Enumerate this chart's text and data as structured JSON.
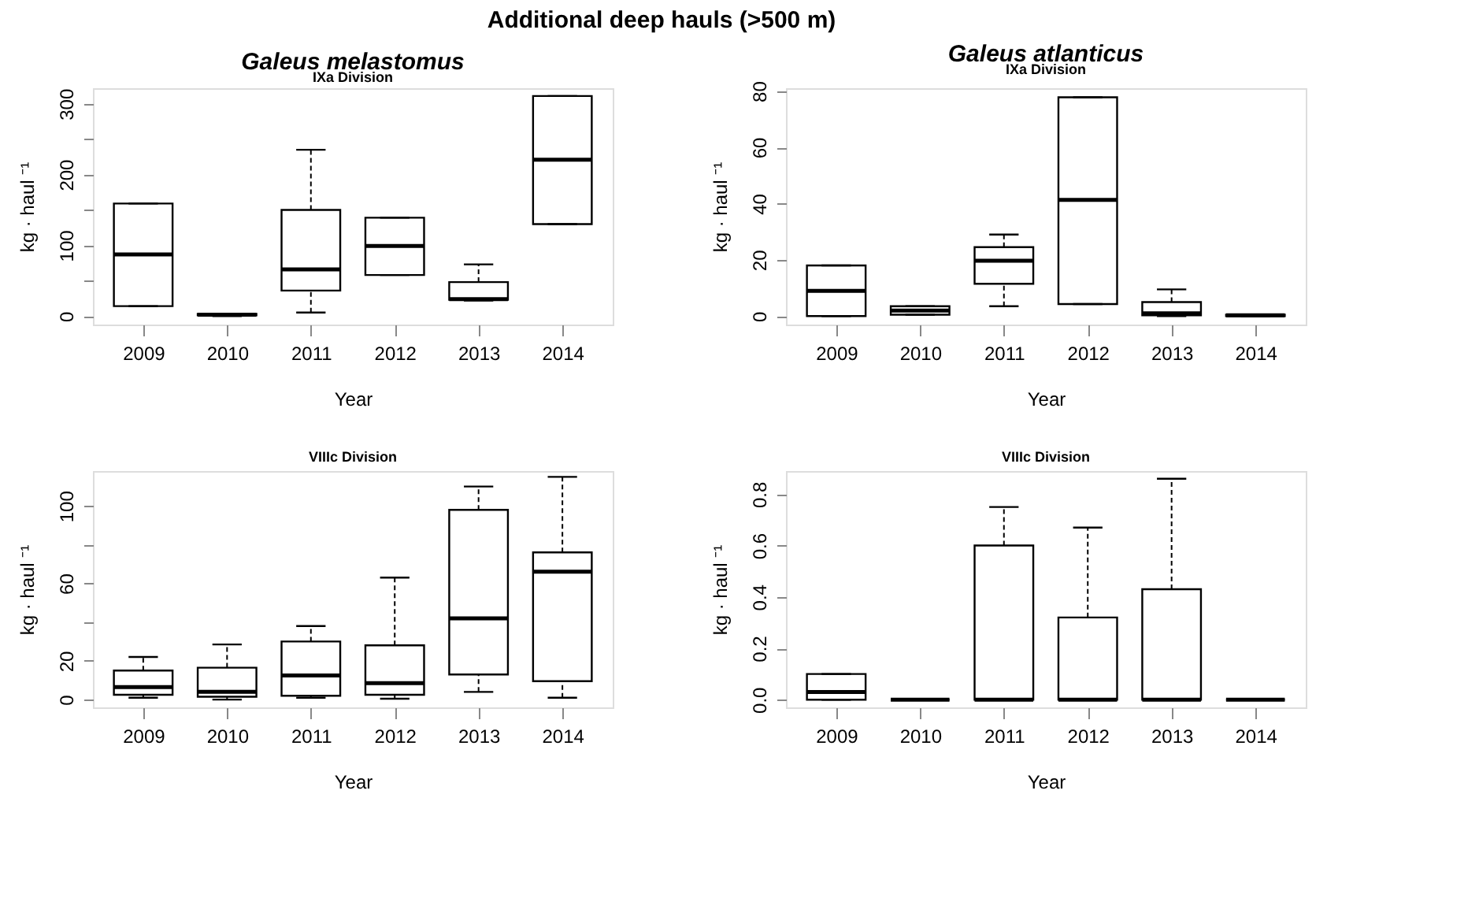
{
  "chart_data": [
    {
      "type": "box",
      "title": "Galeus melastomus",
      "subtitle": "IXa Division",
      "annotations": [
        "Additional deep hauls (>500 m)"
      ],
      "xlabel": "Year",
      "ylabel": "kg · haul ⁻¹",
      "categories": [
        "2009",
        "2010",
        "2011",
        "2012",
        "2013",
        "2014"
      ],
      "ylim": [
        -12,
        322
      ],
      "yticks": [
        0,
        {
          "value": 50,
          "label": null
        },
        100,
        {
          "value": 150,
          "label": null
        },
        200,
        {
          "value": 250,
          "label": null
        },
        300
      ],
      "boxes": [
        {
          "low": 14,
          "q1": 14,
          "median": 87,
          "q3": 159,
          "high": 159
        },
        {
          "low": 0,
          "q1": 1,
          "median": 2,
          "q3": 3,
          "high": 3
        },
        {
          "low": 5,
          "q1": 36,
          "median": 66,
          "q3": 150,
          "high": 235
        },
        {
          "low": 58,
          "q1": 58,
          "median": 99,
          "q3": 139,
          "high": 139
        },
        {
          "low": 22,
          "q1": 23,
          "median": 24,
          "q3": 48,
          "high": 73
        },
        {
          "low": 130,
          "q1": 130,
          "median": 221,
          "q3": 311,
          "high": 311
        }
      ]
    },
    {
      "type": "box",
      "title": "Galeus atlanticus",
      "subtitle": "IXa Division",
      "xlabel": "Year",
      "ylabel": "kg · haul ⁻¹",
      "categories": [
        "2009",
        "2010",
        "2011",
        "2012",
        "2013",
        "2014"
      ],
      "ylim": [
        -3,
        81
      ],
      "yticks": [
        0,
        20,
        40,
        60,
        80
      ],
      "boxes": [
        {
          "low": 0,
          "q1": 0,
          "median": 9,
          "q3": 18,
          "high": 18
        },
        {
          "low": 0.5,
          "q1": 0.5,
          "median": 2,
          "q3": 3.5,
          "high": 3.5
        },
        {
          "low": 3.5,
          "q1": 11.5,
          "median": 19.7,
          "q3": 24.5,
          "high": 29
        },
        {
          "low": 4.3,
          "q1": 4.3,
          "median": 41.3,
          "q3": 77.8,
          "high": 77.8
        },
        {
          "low": 0,
          "q1": 0.3,
          "median": 1,
          "q3": 5,
          "high": 9.5
        },
        {
          "low": 0,
          "q1": 0,
          "median": 0.3,
          "q3": 0.5,
          "high": 0.5
        }
      ]
    },
    {
      "type": "box",
      "title": "VIIIc Division",
      "xlabel": "Year",
      "ylabel": "kg · haul ⁻¹",
      "categories": [
        "2009",
        "2010",
        "2011",
        "2012",
        "2013",
        "2014"
      ],
      "ylim": [
        -4,
        118
      ],
      "yticks": [
        0,
        20,
        {
          "value": 40,
          "label": null
        },
        60,
        {
          "value": 80,
          "label": null
        },
        100
      ],
      "boxes": [
        {
          "low": 1,
          "q1": 2.5,
          "median": 6.5,
          "q3": 15,
          "high": 22
        },
        {
          "low": 0,
          "q1": 1.5,
          "median": 4,
          "q3": 16.5,
          "high": 28.5
        },
        {
          "low": 1,
          "q1": 2,
          "median": 12.5,
          "q3": 30,
          "high": 38
        },
        {
          "low": 0.5,
          "q1": 2.5,
          "median": 8.5,
          "q3": 28,
          "high": 63
        },
        {
          "low": 4,
          "q1": 13,
          "median": 42,
          "q3": 98,
          "high": 110
        },
        {
          "low": 1,
          "q1": 9.5,
          "median": 66,
          "q3": 76,
          "high": 115
        }
      ]
    },
    {
      "type": "box",
      "title": "VIIIc Division",
      "xlabel": "Year",
      "ylabel": "kg · haul ⁻¹",
      "categories": [
        "2009",
        "2010",
        "2011",
        "2012",
        "2013",
        "2014"
      ],
      "ylim": [
        -0.03,
        0.89
      ],
      "yticks": [
        {
          "value": 0,
          "label": "0.0"
        },
        0.2,
        0.4,
        0.6,
        0.8
      ],
      "boxes": [
        {
          "low": 0,
          "q1": 0,
          "median": 0.03,
          "q3": 0.1,
          "high": 0.1
        },
        {
          "low": 0,
          "q1": 0,
          "median": 0,
          "q3": 0,
          "high": 0
        },
        {
          "low": 0,
          "q1": 0,
          "median": 0,
          "q3": 0.6,
          "high": 0.75
        },
        {
          "low": 0,
          "q1": 0,
          "median": 0,
          "q3": 0.32,
          "high": 0.67
        },
        {
          "low": 0,
          "q1": 0,
          "median": 0,
          "q3": 0.43,
          "high": 0.86
        },
        {
          "low": 0,
          "q1": 0,
          "median": 0,
          "q3": 0,
          "high": 0
        }
      ]
    }
  ]
}
